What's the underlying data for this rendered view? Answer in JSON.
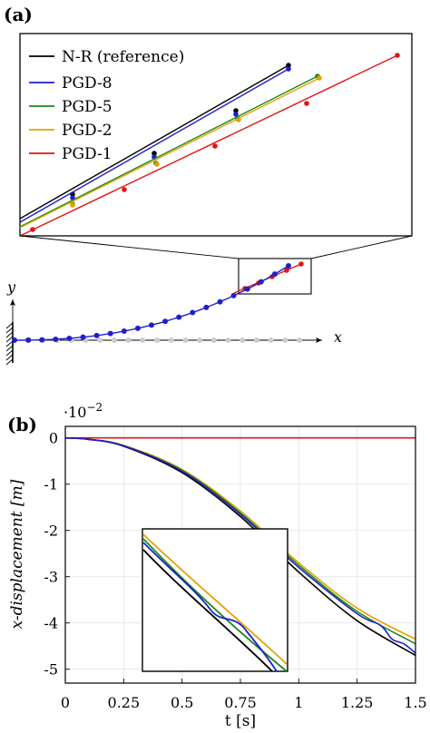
{
  "panel_a": {
    "label": "(a)",
    "axis_x": "x",
    "axis_y": "y"
  },
  "panel_b": {
    "label": "(b)",
    "scale_base": "·10",
    "scale_exp": "−2"
  },
  "colors": {
    "nr": "#000000",
    "pgd8": "#1f1fcc",
    "pgd5": "#1a8a1a",
    "pgd2": "#e6a000",
    "pgd1": "#e01515",
    "ghost": "#cccccc"
  },
  "chart_data": [
    {
      "type": "line",
      "title": "",
      "legend": {
        "placement": "top-left",
        "entries": [
          "N-R (reference)",
          "PGD-8",
          "PGD-5",
          "PGD-2",
          "PGD-1"
        ]
      },
      "series": [
        {
          "name": "N-R (reference)",
          "color": "#000000"
        },
        {
          "name": "PGD-8",
          "color": "#1f1fcc"
        },
        {
          "name": "PGD-5",
          "color": "#1a8a1a"
        },
        {
          "name": "PGD-2",
          "color": "#e6a000"
        },
        {
          "name": "PGD-1",
          "color": "#e01515"
        }
      ]
    },
    {
      "type": "line",
      "xlabel": "t [s]",
      "ylabel": "x-displacement [m]",
      "xlim": [
        0,
        1.5
      ],
      "ylim": [
        -5.3,
        0.25
      ],
      "grid": true,
      "x_ticks": [
        "0",
        "0.25",
        "0.5",
        "0.75",
        "1",
        "1.25",
        "1.5"
      ],
      "y_ticks": [
        "0",
        "-1",
        "-2",
        "-3",
        "-4",
        "-5"
      ],
      "x_tick_values": [
        0,
        0.25,
        0.5,
        0.75,
        1,
        1.25,
        1.5
      ],
      "y_tick_values": [
        0,
        -1,
        -2,
        -3,
        -4,
        -5
      ],
      "series": [
        {
          "name": "N-R (reference)",
          "color": "#000000",
          "x": [
            0,
            0.1,
            0.25,
            0.5,
            0.75,
            1.0,
            1.25,
            1.5
          ],
          "y": [
            0,
            -0.03,
            -0.18,
            -0.75,
            -1.7,
            -2.9,
            -3.95,
            -4.7
          ]
        },
        {
          "name": "PGD-8",
          "color": "#1f1fcc",
          "x": [
            0,
            0.1,
            0.25,
            0.5,
            0.75,
            1.0,
            1.25,
            1.35,
            1.4,
            1.45,
            1.5
          ],
          "y": [
            0,
            -0.03,
            -0.17,
            -0.72,
            -1.65,
            -2.8,
            -3.8,
            -4.05,
            -4.35,
            -4.45,
            -4.65
          ]
        },
        {
          "name": "PGD-5",
          "color": "#1a8a1a",
          "x": [
            0,
            0.1,
            0.25,
            0.5,
            0.75,
            1.0,
            1.25,
            1.5
          ],
          "y": [
            0,
            -0.03,
            -0.17,
            -0.7,
            -1.62,
            -2.75,
            -3.75,
            -4.45
          ]
        },
        {
          "name": "PGD-2",
          "color": "#e6a000",
          "x": [
            0,
            0.1,
            0.25,
            0.5,
            0.75,
            1.0,
            1.25,
            1.5
          ],
          "y": [
            0,
            -0.03,
            -0.16,
            -0.68,
            -1.58,
            -2.7,
            -3.68,
            -4.35
          ]
        },
        {
          "name": "PGD-1",
          "color": "#e01515",
          "x": [
            0,
            1.5
          ],
          "y": [
            0,
            0
          ]
        }
      ]
    }
  ]
}
